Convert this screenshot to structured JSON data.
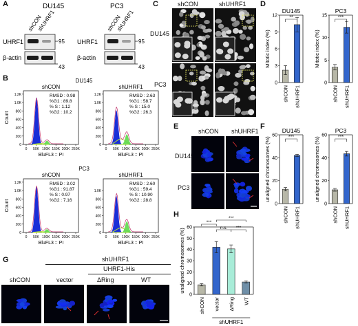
{
  "panels": {
    "A": "A",
    "B": "B",
    "C": "C",
    "D": "D",
    "E": "E",
    "F": "F",
    "G": "G",
    "H": "H"
  },
  "A": {
    "blots": [
      {
        "cell": "DU145",
        "lanes": [
          "shCON",
          "shUHRF1"
        ],
        "rows": [
          {
            "protein": "UHRF1",
            "marker": "95"
          },
          {
            "protein": "β-actin",
            "marker": "43"
          }
        ]
      },
      {
        "cell": "PC3",
        "lanes": [
          "shCON",
          "shUHRF1"
        ],
        "rows": [
          {
            "protein": "UHRF1",
            "marker": "95"
          },
          {
            "protein": "β-actin",
            "marker": "43"
          }
        ]
      }
    ]
  },
  "B": {
    "xlabel": "BluFL3 :: PI",
    "ylabel": "Count",
    "xticks": [
      "0",
      "50K",
      "100K",
      "150K",
      "200K",
      "250K"
    ],
    "yticks_du": [
      "0",
      "200",
      "400",
      "600",
      "800",
      "1.0K",
      "1.2K"
    ],
    "yticks_pc": [
      "0",
      "200",
      "400",
      "600",
      "800",
      "1.0K",
      "1.2K"
    ],
    "yticks_pc_r": [
      "0",
      "200",
      "400",
      "600",
      "800",
      "1.0K"
    ],
    "groups": [
      {
        "cell": "DU145",
        "plots": [
          {
            "title": "shCON",
            "stats": [
              "RMSD : 0.98",
              "%G1 : 89.8",
              "% S : 1.12",
              "%G2 : 10.2"
            ]
          },
          {
            "title": "shUHRF1",
            "stats": [
              "RMSD : 2.63",
              "%G1 : 58.7",
              "% S : 15.0",
              "%G2 : 26.3"
            ]
          }
        ]
      },
      {
        "cell": "PC3",
        "plots": [
          {
            "title": "shCON",
            "stats": [
              "RMSD : 3.02",
              "%G1 : 91.87",
              "% S : 0.97",
              "%G2 : 7.16"
            ]
          },
          {
            "title": "shUHRF1",
            "stats": [
              "RMSD : 2.60",
              "%G1 : 59.4",
              "% S : 10.90",
              "%G2 : 28.8"
            ]
          }
        ]
      }
    ]
  },
  "C": {
    "cols": [
      "shCON",
      "shUHRF1"
    ],
    "rows": [
      "DU145",
      "PC3"
    ]
  },
  "E": {
    "cols": [
      "shCON",
      "shUHRF1"
    ],
    "rows": [
      "DU145",
      "PC3"
    ]
  },
  "G": {
    "top": "shUHRF1",
    "sub": "UHRF1-His",
    "labels": [
      "shCON",
      "vector",
      "ΔRing",
      "WT"
    ]
  },
  "chart_data": [
    {
      "type": "bar",
      "panel": "D",
      "title": "DU145",
      "ylabel": "Mitotic index (%)",
      "categories": [
        "shCON",
        "shUHRF1"
      ],
      "values": [
        2.2,
        10.3
      ],
      "errors": [
        0.8,
        1.3
      ],
      "ylim": [
        0,
        12
      ],
      "yticks": [
        "0",
        "3",
        "6",
        "9",
        "12"
      ],
      "significance": "**",
      "colors": [
        "#b8b8a8",
        "#3366cc"
      ]
    },
    {
      "type": "bar",
      "panel": "D",
      "title": "PC3",
      "ylabel": "Mitotic index (%)",
      "categories": [
        "shCON",
        "shUHRF1"
      ],
      "values": [
        3.4,
        12.3
      ],
      "errors": [
        0.6,
        1.3
      ],
      "ylim": [
        0,
        15
      ],
      "yticks": [
        "0",
        "5",
        "10",
        "15"
      ],
      "significance": "***",
      "colors": [
        "#b8b8a8",
        "#3366cc"
      ]
    },
    {
      "type": "bar",
      "panel": "F",
      "title": "DU145",
      "ylabel": "unaligned chromosomes (%)",
      "categories": [
        "shCON",
        "shUHRF1"
      ],
      "values": [
        12.5,
        42
      ],
      "errors": [
        1.5,
        1
      ],
      "ylim": [
        0,
        60
      ],
      "yticks": [
        "0",
        "20",
        "40",
        "60"
      ],
      "significance": "***",
      "colors": [
        "#b8b8a8",
        "#3366cc"
      ]
    },
    {
      "type": "bar",
      "panel": "F",
      "title": "PC3",
      "ylabel": "unaligned chromosomes (%)",
      "categories": [
        "shCON",
        "shUHRF1"
      ],
      "values": [
        12,
        43.5
      ],
      "errors": [
        1.2,
        2
      ],
      "ylim": [
        0,
        60
      ],
      "yticks": [
        "0",
        "20",
        "40",
        "60"
      ],
      "significance": "***",
      "colors": [
        "#b8b8a8",
        "#3366cc"
      ]
    },
    {
      "type": "bar",
      "panel": "H",
      "title": "",
      "ylabel": "unaligned chromosomes (%)",
      "xgroup": "shUHRF1",
      "categories": [
        "shCON",
        "vector",
        "ΔRing",
        "WT"
      ],
      "values": [
        8.5,
        42,
        40.5,
        11
      ],
      "errors": [
        1,
        5,
        3.5,
        1
      ],
      "ylim": [
        0,
        60
      ],
      "yticks": [
        "0",
        "10",
        "20",
        "30",
        "40",
        "50",
        "60"
      ],
      "significance": [
        "***",
        "n.s.",
        "***",
        "***"
      ],
      "colors": [
        "#b8b8a8",
        "#3366cc",
        "#a8ecd8",
        "#6f8fa8"
      ]
    }
  ]
}
